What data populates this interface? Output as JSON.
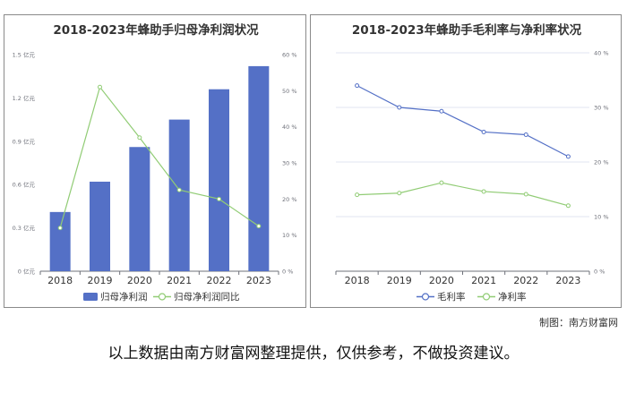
{
  "chart_data": [
    {
      "type": "bar+line",
      "title": "2018-2023年蜂助手归母净利润状况",
      "categories": [
        "2018",
        "2019",
        "2020",
        "2021",
        "2022",
        "2023"
      ],
      "y_left": {
        "range": [
          0,
          1.5
        ],
        "ticks": [
          "0 亿元",
          "0.3 亿元",
          "0.6 亿元",
          "0.9 亿元",
          "1.2 亿元",
          "1.5 亿元"
        ]
      },
      "y_right": {
        "range": [
          0,
          60
        ],
        "ticks": [
          "0 %",
          "10 %",
          "20 %",
          "30 %",
          "40 %",
          "50 %",
          "60 %"
        ]
      },
      "series": [
        {
          "name": "归母净利润",
          "type": "bar",
          "axis": "left",
          "color": "#5470c6",
          "values": [
            0.41,
            0.62,
            0.86,
            1.05,
            1.26,
            1.42
          ]
        },
        {
          "name": "归母净利润同比",
          "type": "line",
          "axis": "right",
          "color": "#91cc75",
          "values": [
            12,
            51,
            37,
            22.5,
            20,
            12.5
          ]
        }
      ],
      "legend_position": "bottom",
      "grid": false
    },
    {
      "type": "line",
      "title": "2018-2023年蜂助手毛利率与净利率状况",
      "categories": [
        "2018",
        "2019",
        "2020",
        "2021",
        "2022",
        "2023"
      ],
      "y_right": {
        "range": [
          0,
          40
        ],
        "ticks": [
          "0 %",
          "10 %",
          "20 %",
          "30 %",
          "40 %"
        ]
      },
      "series": [
        {
          "name": "毛利率",
          "type": "line",
          "color": "#5470c6",
          "values": [
            34,
            30,
            29.3,
            25.5,
            25,
            21
          ]
        },
        {
          "name": "净利率",
          "type": "line",
          "color": "#91cc75",
          "values": [
            14,
            14.3,
            16.2,
            14.6,
            14.1,
            12
          ]
        }
      ],
      "legend_position": "bottom",
      "grid": true
    }
  ],
  "credit": "制图：南方财富网",
  "footer_note": "以上数据由南方财富网整理提供，仅供参考，不做投资建议。"
}
